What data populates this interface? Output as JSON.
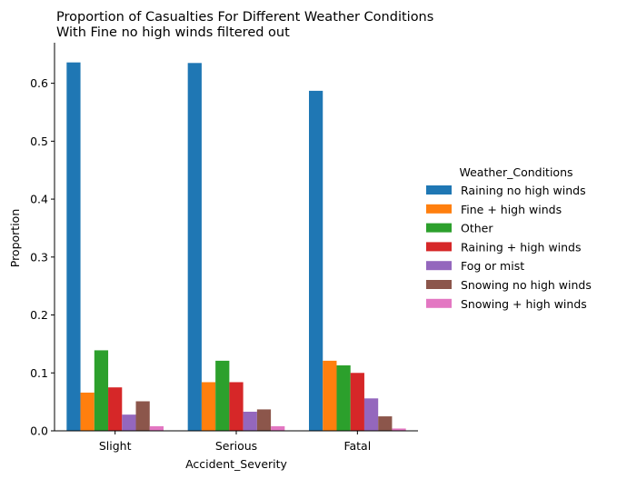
{
  "chart_data": {
    "type": "bar",
    "title_lines": [
      "Proportion of Casualties For Different Weather Conditions",
      "With Fine no high winds filtered out"
    ],
    "xlabel": "Accident_Severity",
    "ylabel": "Proportion",
    "ylim": [
      0,
      0.67
    ],
    "yticks": [
      "0.0",
      "0.1",
      "0.2",
      "0.3",
      "0.4",
      "0.5",
      "0.6"
    ],
    "categories": [
      "Slight",
      "Serious",
      "Fatal"
    ],
    "legend_title": "Weather_Conditions",
    "legend_position": "right",
    "grid": false,
    "series": [
      {
        "name": "Raining no high winds",
        "color": "#1f77b4",
        "values": [
          0.636,
          0.635,
          0.587
        ]
      },
      {
        "name": "Fine + high winds",
        "color": "#ff7f0e",
        "values": [
          0.066,
          0.084,
          0.121
        ]
      },
      {
        "name": "Other",
        "color": "#2ca02c",
        "values": [
          0.139,
          0.121,
          0.113
        ]
      },
      {
        "name": "Raining + high winds",
        "color": "#d62728",
        "values": [
          0.075,
          0.084,
          0.1
        ]
      },
      {
        "name": "Fog or mist",
        "color": "#9467bd",
        "values": [
          0.028,
          0.033,
          0.056
        ]
      },
      {
        "name": "Snowing no high winds",
        "color": "#8c564b",
        "values": [
          0.051,
          0.037,
          0.025
        ]
      },
      {
        "name": "Snowing + high winds",
        "color": "#e377c2",
        "values": [
          0.008,
          0.008,
          0.004
        ]
      }
    ]
  }
}
